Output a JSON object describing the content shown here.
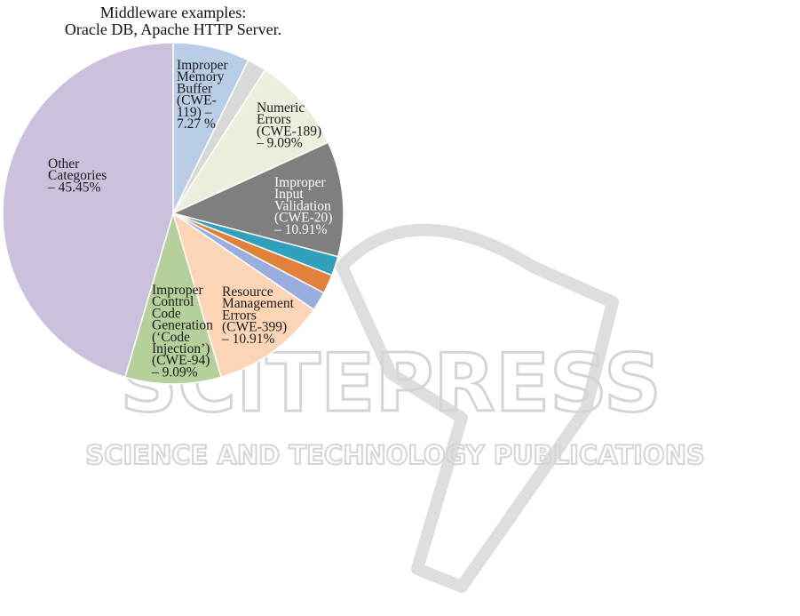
{
  "chart_data": {
    "type": "pie",
    "title": "Middleware examples:",
    "subtitle": "Oracle DB, Apache HTTP Server.",
    "slices": [
      {
        "value": 7.27,
        "color": "#b9cde6",
        "label_lines": [
          "Improper",
          "Memory",
          "Buffer",
          "(CWE-",
          "119) –",
          "7.27 %"
        ]
      },
      {
        "value": 1.82,
        "color": "#d9d9d9",
        "label_lines": []
      },
      {
        "value": 9.09,
        "color": "#ebf0de",
        "label_lines": [
          "Numeric",
          "Errors",
          "(CWE-189)",
          "– 9.09%"
        ]
      },
      {
        "value": 10.91,
        "color": "#7f7f7f",
        "label_lines": [
          "Improper",
          "Input",
          "Validation",
          "(CWE-20)",
          "– 10.91%"
        ],
        "light_text": true
      },
      {
        "value": 1.82,
        "color": "#31a0bd",
        "label_lines": []
      },
      {
        "value": 1.82,
        "color": "#e1823c",
        "label_lines": []
      },
      {
        "value": 1.82,
        "color": "#99aede",
        "label_lines": []
      },
      {
        "value": 10.91,
        "color": "#fbd5b6",
        "label_lines": [
          "Resource",
          "Management",
          "Errors",
          "(CWE-399)",
          "– 10.91%"
        ]
      },
      {
        "value": 9.09,
        "color": "#b5d09a",
        "label_lines": [
          "Improper",
          "Control",
          "Code",
          "Generation",
          "(‘Code",
          "Injection’)",
          "(CWE-94)",
          "– 9.09%"
        ]
      },
      {
        "value": 45.45,
        "color": "#cbc1dc",
        "label_lines": [
          "Other",
          "Categories",
          "– 45.45%"
        ]
      }
    ]
  },
  "watermark": {
    "main": "SCITEPRESS",
    "sub": "SCIENCE AND TECHNOLOGY PUBLICATIONS"
  }
}
